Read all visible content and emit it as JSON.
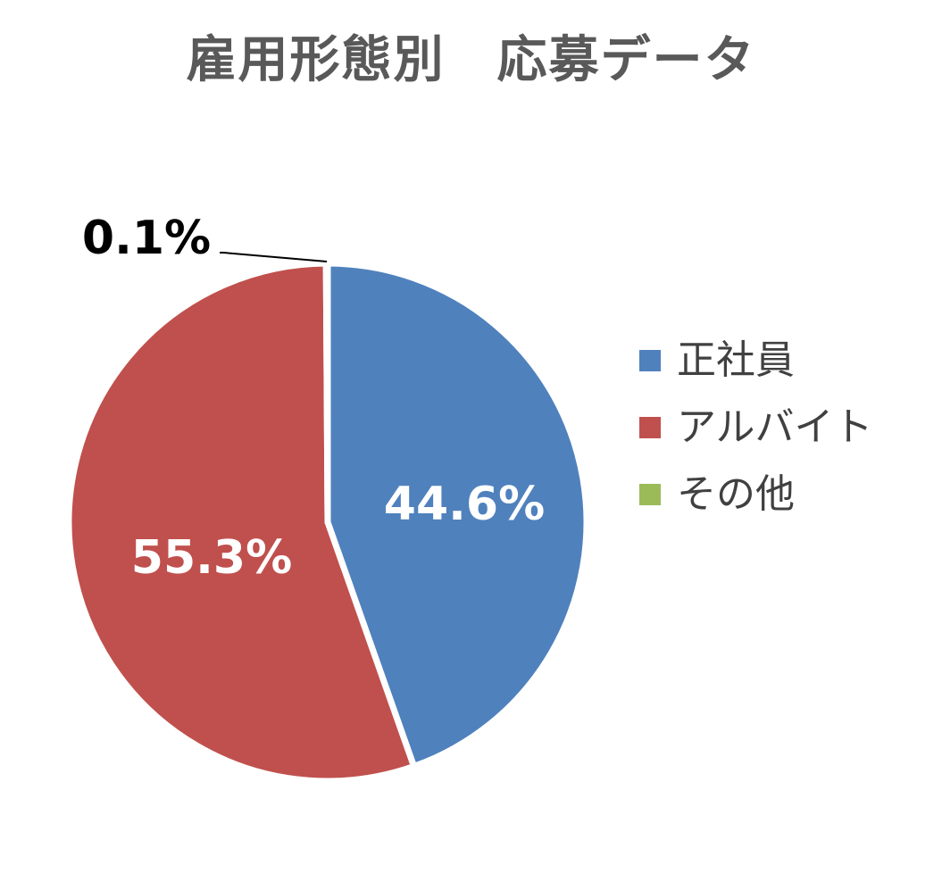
{
  "chart_data": {
    "type": "pie",
    "title": "雇用形態別　応募データ",
    "categories": [
      "正社員",
      "アルバイト",
      "その他"
    ],
    "values": [
      44.6,
      55.3,
      0.1
    ],
    "value_labels": [
      "44.6%",
      "55.3%",
      "0.1%"
    ],
    "unit": "%",
    "colors": [
      "#4F81BD",
      "#C0504D",
      "#9BBB59"
    ],
    "legend_position": "right"
  }
}
